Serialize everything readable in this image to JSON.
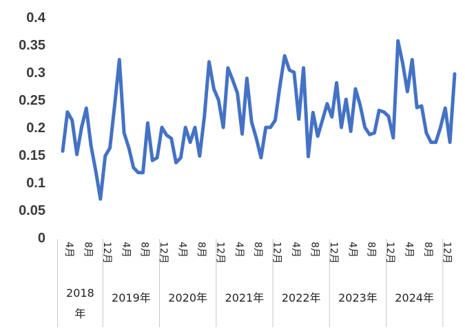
{
  "chart_data": {
    "type": "line",
    "title": "",
    "xlabel": "",
    "ylabel": "",
    "ylim": [
      0,
      0.4
    ],
    "y_ticks": [
      "0",
      "0.05",
      "0.1",
      "0.15",
      "0.2",
      "0.25",
      "0.3",
      "0.35",
      "0.4"
    ],
    "grid": false,
    "line_color": "#4472C4",
    "series": [
      {
        "values": [
          0.157,
          0.228,
          0.213,
          0.151,
          0.2,
          0.235,
          0.167,
          0.121,
          0.07,
          0.148,
          0.163,
          0.24,
          0.323,
          0.19,
          0.163,
          0.127,
          0.118,
          0.118,
          0.208,
          0.14,
          0.145,
          0.2,
          0.186,
          0.18,
          0.136,
          0.145,
          0.2,
          0.173,
          0.2,
          0.148,
          0.22,
          0.319,
          0.27,
          0.25,
          0.2,
          0.308,
          0.286,
          0.262,
          0.188,
          0.289,
          0.21,
          0.18,
          0.145,
          0.2,
          0.2,
          0.213,
          0.275,
          0.33,
          0.304,
          0.3,
          0.215,
          0.308,
          0.147,
          0.227,
          0.184,
          0.213,
          0.243,
          0.219,
          0.281,
          0.2,
          0.251,
          0.193,
          0.27,
          0.24,
          0.2,
          0.187,
          0.19,
          0.231,
          0.228,
          0.22,
          0.181,
          0.357,
          0.316,
          0.265,
          0.323,
          0.236,
          0.239,
          0.19,
          0.173,
          0.173,
          0.2,
          0.235,
          0.173,
          0.297
        ]
      }
    ],
    "month_labels": [
      {
        "index": 0,
        "text": "4月"
      },
      {
        "index": 4,
        "text": "8月"
      },
      {
        "index": 8,
        "text": "12月"
      },
      {
        "index": 12,
        "text": "4月"
      },
      {
        "index": 16,
        "text": "8月"
      },
      {
        "index": 20,
        "text": "12月"
      },
      {
        "index": 24,
        "text": "4月"
      },
      {
        "index": 28,
        "text": "8月"
      },
      {
        "index": 32,
        "text": "12月"
      },
      {
        "index": 36,
        "text": "4月"
      },
      {
        "index": 40,
        "text": "8月"
      },
      {
        "index": 44,
        "text": "12月"
      },
      {
        "index": 48,
        "text": "4月"
      },
      {
        "index": 52,
        "text": "8月"
      },
      {
        "index": 56,
        "text": "12月"
      },
      {
        "index": 60,
        "text": "4月"
      },
      {
        "index": 64,
        "text": "8月"
      },
      {
        "index": 68,
        "text": "12月"
      },
      {
        "index": 72,
        "text": "4月"
      },
      {
        "index": 76,
        "text": "8月"
      },
      {
        "index": 80,
        "text": "12月"
      }
    ],
    "year_groups": [
      {
        "label": [
          "2018",
          "年"
        ],
        "start": 0,
        "end": 8
      },
      {
        "label": [
          "2019年"
        ],
        "start": 9,
        "end": 20
      },
      {
        "label": [
          "2020年"
        ],
        "start": 21,
        "end": 32
      },
      {
        "label": [
          "2021年"
        ],
        "start": 33,
        "end": 44
      },
      {
        "label": [
          "2022年"
        ],
        "start": 45,
        "end": 56
      },
      {
        "label": [
          "2023年"
        ],
        "start": 57,
        "end": 68
      },
      {
        "label": [
          "2024年"
        ],
        "start": 69,
        "end": 80
      }
    ]
  }
}
